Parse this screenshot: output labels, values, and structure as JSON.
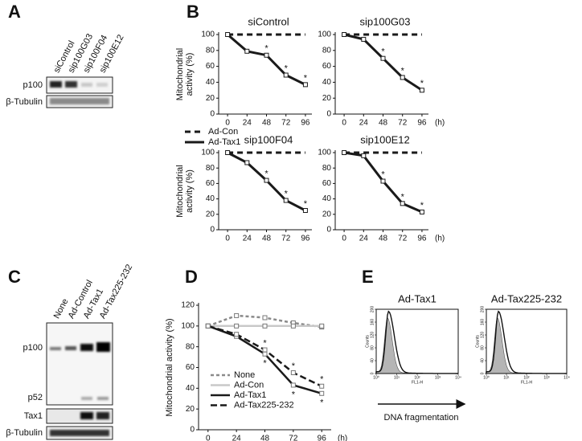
{
  "letters": [
    "A",
    "B",
    "C",
    "D",
    "E"
  ],
  "blot_A": {
    "lanes": [
      "siControl",
      "sip100G03",
      "sip100F04",
      "sip100E12"
    ],
    "rows": [
      "p100",
      "β-Tubulin"
    ]
  },
  "blot_C": {
    "lanes": [
      "None",
      "Ad-Control",
      "Ad-Tax1",
      "Ad-Tax225-232"
    ],
    "rows": [
      "p100",
      "p52",
      "Tax1",
      "β-Tubulin"
    ]
  },
  "flow_caption": "DNA fragmentation",
  "chart_data": [
    {
      "type": "line",
      "title": "siControl",
      "ylabel": [
        "Mitochondrial",
        "activity (%)"
      ],
      "x": [
        0,
        24,
        48,
        72,
        96
      ],
      "xlim": [
        -11,
        104
      ],
      "xticks": [
        0,
        24,
        48,
        72,
        96
      ],
      "ylim": [
        0,
        100
      ],
      "yticks": [
        0,
        20,
        40,
        60,
        80,
        100
      ],
      "asterisk": "*",
      "legend": true,
      "series": [
        {
          "name": "Ad-Con",
          "color": "#1a1a1a",
          "dash": "7,5",
          "width": 3,
          "values": [
            100,
            100,
            100,
            100,
            100
          ]
        },
        {
          "name": "Ad-Tax1",
          "color": "#1a1a1a",
          "width": 3,
          "marker": "square",
          "values": [
            100,
            79,
            74,
            49,
            37
          ],
          "starred": [
            false,
            false,
            true,
            true,
            true
          ],
          "star_side": "above"
        }
      ]
    },
    {
      "type": "line",
      "title": "sip100G03",
      "x_unit": "(h)",
      "x": [
        0,
        24,
        48,
        72,
        96
      ],
      "xlim": [
        -11,
        104
      ],
      "xticks": [
        0,
        24,
        48,
        72,
        96
      ],
      "ylim": [
        0,
        100
      ],
      "yticks": [
        0,
        20,
        40,
        60,
        80,
        100
      ],
      "asterisk": "*",
      "series": [
        {
          "color": "#1a1a1a",
          "dash": "7,5",
          "width": 3,
          "values": [
            100,
            100,
            100,
            100,
            100
          ]
        },
        {
          "color": "#1a1a1a",
          "width": 3,
          "marker": "square",
          "values": [
            100,
            94,
            70,
            46,
            30
          ],
          "starred": [
            false,
            false,
            true,
            true,
            true
          ],
          "star_side": "above"
        }
      ]
    },
    {
      "type": "line",
      "title": "sip100F04",
      "ylabel": [
        "Mitochondrial",
        "activity (%)"
      ],
      "x": [
        0,
        24,
        48,
        72,
        96
      ],
      "xlim": [
        -11,
        104
      ],
      "xticks": [
        0,
        24,
        48,
        72,
        96
      ],
      "ylim": [
        0,
        100
      ],
      "yticks": [
        0,
        20,
        40,
        60,
        80,
        100
      ],
      "asterisk": "*",
      "series": [
        {
          "color": "#1a1a1a",
          "dash": "7,5",
          "width": 3,
          "values": [
            100,
            100,
            100,
            100,
            100
          ]
        },
        {
          "color": "#1a1a1a",
          "width": 3,
          "marker": "square",
          "values": [
            100,
            87,
            64,
            38,
            25
          ],
          "starred": [
            false,
            false,
            true,
            true,
            true
          ],
          "star_side": "above"
        }
      ]
    },
    {
      "type": "line",
      "title": "sip100E12",
      "x_unit": "(h)",
      "x": [
        0,
        24,
        48,
        72,
        96
      ],
      "xlim": [
        -11,
        104
      ],
      "xticks": [
        0,
        24,
        48,
        72,
        96
      ],
      "ylim": [
        0,
        100
      ],
      "yticks": [
        0,
        20,
        40,
        60,
        80,
        100
      ],
      "asterisk": "*",
      "series": [
        {
          "color": "#1a1a1a",
          "dash": "7,5",
          "width": 3,
          "values": [
            100,
            100,
            100,
            100,
            100
          ]
        },
        {
          "color": "#1a1a1a",
          "width": 3,
          "marker": "square",
          "values": [
            100,
            96,
            63,
            34,
            23
          ],
          "starred": [
            false,
            false,
            true,
            true,
            true
          ],
          "star_side": "above"
        }
      ]
    },
    {
      "type": "line",
      "ylabel": [
        "Mitochondrial activity (%)"
      ],
      "x_unit": "(h)",
      "x": [
        0,
        24,
        48,
        72,
        96
      ],
      "xlim": [
        -8,
        104
      ],
      "xticks": [
        0,
        24,
        48,
        72,
        96
      ],
      "ylim": [
        0,
        120
      ],
      "yticks": [
        0,
        20,
        40,
        60,
        80,
        100,
        120
      ],
      "asterisk": "*",
      "legend": true,
      "series": [
        {
          "name": "None",
          "color": "#8a8a8a",
          "dash": "4,3",
          "width": 2.5,
          "marker": "square",
          "values": [
            100,
            110,
            108,
            103,
            99
          ]
        },
        {
          "name": "Ad-Con",
          "color": "#c8c8c8",
          "width": 2.5,
          "marker": "square",
          "values": [
            100,
            100,
            100,
            100,
            100
          ]
        },
        {
          "name": "Ad-Tax1",
          "color": "#1a1a1a",
          "width": 2.5,
          "marker": "square",
          "values": [
            100,
            90,
            73,
            43,
            35
          ],
          "starred": [
            false,
            false,
            true,
            true,
            true
          ],
          "star_side": "below"
        },
        {
          "name": "Ad-Tax225-232",
          "color": "#1a1a1a",
          "dash": "8,4",
          "width": 2.5,
          "marker": "square",
          "values": [
            100,
            92,
            77,
            55,
            42
          ],
          "starred": [
            false,
            false,
            true,
            true,
            true
          ],
          "star_side": "above"
        }
      ]
    },
    {
      "type": "flow",
      "title": "Ad-Tax1",
      "ylabel": "Counts",
      "xlabel": "FL1-H",
      "log_x": true,
      "xlim": [
        1,
        10000
      ],
      "xticks": [
        {
          "value": 1,
          "label": "10⁰"
        },
        {
          "value": 10,
          "label": "10¹"
        },
        {
          "value": 100,
          "label": "10²"
        },
        {
          "value": 1000,
          "label": "10³"
        },
        {
          "value": 10000,
          "label": "10⁴"
        }
      ],
      "ylim": [
        0,
        200
      ],
      "yticks": [
        0,
        40,
        80,
        120,
        160,
        200
      ]
    },
    {
      "type": "flow",
      "title": "Ad-Tax225-232",
      "ylabel": "Counts",
      "xlabel": "FL1-H",
      "log_x": true,
      "xlim": [
        1,
        10000
      ],
      "xticks": [
        {
          "value": 1,
          "label": "10⁰"
        },
        {
          "value": 10,
          "label": "10¹"
        },
        {
          "value": 100,
          "label": "10²"
        },
        {
          "value": 1000,
          "label": "10³"
        },
        {
          "value": 10000,
          "label": "10⁴"
        }
      ],
      "ylim": [
        0,
        200
      ],
      "yticks": [
        0,
        40,
        80,
        120,
        160,
        200
      ]
    }
  ]
}
